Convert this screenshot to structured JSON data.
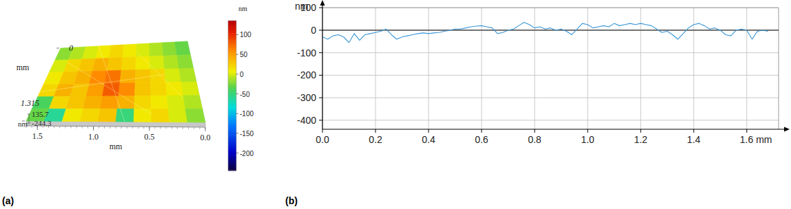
{
  "chart_data": [
    {
      "type": "surface",
      "title": "(a)",
      "x_label": "mm",
      "y_label": "mm",
      "z_label": "nm",
      "xlim": [
        0,
        1.6
      ],
      "xticks": [
        1.5,
        {
          "value": 1,
          "label": "1.0"
        },
        0.5,
        {
          "value": 0,
          "label": "0.0"
        }
      ],
      "ylim": [
        0,
        1.315
      ],
      "yticks": [
        0,
        1.315
      ],
      "zlim": [
        -244.3,
        135.7
      ],
      "zticks": [
        135.7,
        -244.3
      ],
      "cells": [
        [
          -20,
          -10,
          0,
          10,
          20,
          10,
          0,
          -10,
          -20,
          -30
        ],
        [
          0,
          20,
          30,
          40,
          30,
          20,
          10,
          0,
          -10,
          -20
        ],
        [
          10,
          30,
          40,
          60,
          70,
          40,
          30,
          20,
          0,
          -10
        ],
        [
          20,
          40,
          30,
          50,
          80,
          60,
          30,
          20,
          10,
          0
        ],
        [
          -40,
          20,
          30,
          40,
          50,
          40,
          20,
          10,
          0,
          -10
        ],
        [
          -30,
          -60,
          10,
          20,
          30,
          -50,
          10,
          20,
          0,
          -20
        ]
      ],
      "colorbar": {
        "label": "nm",
        "range": [
          -244.3,
          135.7
        ],
        "ticks": [
          100,
          50,
          0,
          -50,
          -100,
          -150,
          -200
        ]
      }
    },
    {
      "type": "line",
      "title": "(b)",
      "y_label": "nm",
      "color": "#3a96d8",
      "grid": true,
      "xlim": [
        0,
        1.72
      ],
      "ylim": [
        -440,
        125
      ],
      "xticks": [
        {
          "value": 0,
          "label": "0.0"
        },
        {
          "value": 0.2,
          "label": "0.2"
        },
        {
          "value": 0.4,
          "label": "0.4"
        },
        {
          "value": 0.6,
          "label": "0.6"
        },
        {
          "value": 0.8,
          "label": "0.8"
        },
        {
          "value": 1,
          "label": "1.0"
        },
        {
          "value": 1.2,
          "label": "1.2"
        },
        {
          "value": 1.4,
          "label": "1.4"
        },
        {
          "value": 1.6,
          "label": "1.6 mm"
        }
      ],
      "yticks": [
        100,
        0,
        -100,
        -200,
        -300,
        -400
      ],
      "x": [
        0,
        0.02,
        0.04,
        0.06,
        0.08,
        0.1,
        0.12,
        0.14,
        0.16,
        0.18,
        0.2,
        0.22,
        0.24,
        0.26,
        0.28,
        0.3,
        0.32,
        0.34,
        0.36,
        0.38,
        0.4,
        0.42,
        0.44,
        0.46,
        0.48,
        0.5,
        0.52,
        0.54,
        0.56,
        0.58,
        0.6,
        0.62,
        0.64,
        0.66,
        0.68,
        0.7,
        0.72,
        0.74,
        0.76,
        0.78,
        0.8,
        0.82,
        0.84,
        0.86,
        0.88,
        0.9,
        0.92,
        0.94,
        0.96,
        0.98,
        1,
        1.02,
        1.04,
        1.06,
        1.08,
        1.1,
        1.12,
        1.14,
        1.16,
        1.18,
        1.2,
        1.22,
        1.24,
        1.26,
        1.28,
        1.3,
        1.32,
        1.34,
        1.36,
        1.38,
        1.4,
        1.42,
        1.44,
        1.46,
        1.48,
        1.5,
        1.52,
        1.54,
        1.56,
        1.58,
        1.6,
        1.62,
        1.64,
        1.66,
        1.68
      ],
      "values": [
        -30,
        -40,
        -25,
        -20,
        -30,
        -55,
        -15,
        -45,
        -20,
        -15,
        -10,
        -5,
        5,
        -20,
        -40,
        -30,
        -25,
        -20,
        -15,
        -12,
        -15,
        -12,
        -10,
        -5,
        0,
        5,
        5,
        10,
        15,
        18,
        20,
        15,
        10,
        -15,
        -10,
        0,
        5,
        20,
        35,
        25,
        10,
        15,
        5,
        10,
        0,
        5,
        -5,
        -20,
        5,
        30,
        25,
        10,
        15,
        20,
        15,
        30,
        20,
        25,
        30,
        25,
        30,
        25,
        20,
        5,
        -10,
        -5,
        -20,
        -40,
        -15,
        10,
        25,
        30,
        20,
        5,
        10,
        0,
        -20,
        -25,
        0,
        5,
        0,
        -40,
        -5,
        0,
        -5
      ]
    }
  ]
}
